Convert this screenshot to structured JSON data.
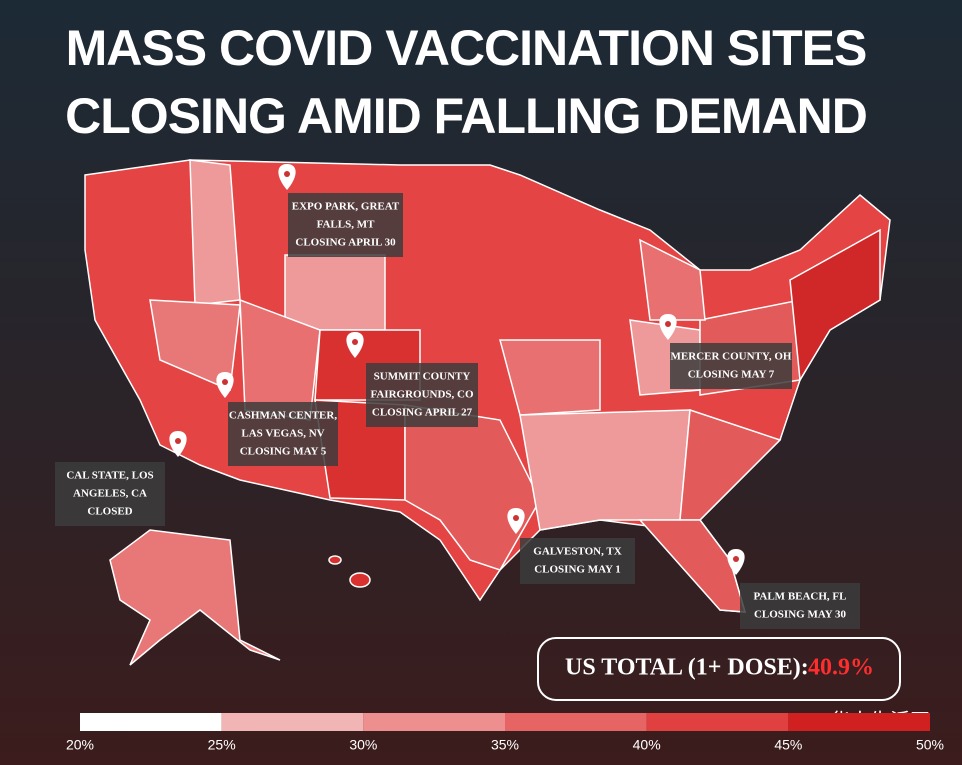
{
  "header": {
    "title_lines": [
      "MASS COVID VACCINATION SITES",
      "CLOSING AMID FALLING DEMAND"
    ]
  },
  "annotations": [
    {
      "lines": [
        "EXPO PARK, GREAT",
        "FALLS, MT",
        "CLOSING APRIL 30"
      ]
    },
    {
      "lines": [
        "SUMMIT COUNTY",
        "FAIRGROUNDS, CO",
        "CLOSING APRIL 27"
      ]
    },
    {
      "lines": [
        "CASHMAN CENTER,",
        "LAS VEGAS, NV",
        "CLOSING MAY 5"
      ]
    },
    {
      "lines": [
        "CAL STATE, LOS",
        "ANGELES, CA",
        "CLOSED"
      ]
    },
    {
      "lines": [
        "MERCER COUNTY, OH",
        "CLOSING MAY 7"
      ]
    },
    {
      "lines": [
        "GALVESTON, TX",
        "CLOSING MAY 1"
      ]
    },
    {
      "lines": [
        "PALM BEACH, FL",
        "CLOSING MAY 30"
      ]
    }
  ],
  "total": {
    "label": "US TOTAL (1+ DOSE):",
    "value": "40.9%"
  },
  "legend": {
    "ticks": [
      {
        "value": 20,
        "label": "20%"
      },
      {
        "value": 25,
        "label": "25%"
      },
      {
        "value": 30,
        "label": "30%"
      },
      {
        "value": 35,
        "label": "35%"
      },
      {
        "value": 40,
        "label": "40%"
      },
      {
        "value": 45,
        "label": "45%"
      },
      {
        "value": 50,
        "label": "50%"
      }
    ]
  },
  "watermark": "华人生活网"
}
